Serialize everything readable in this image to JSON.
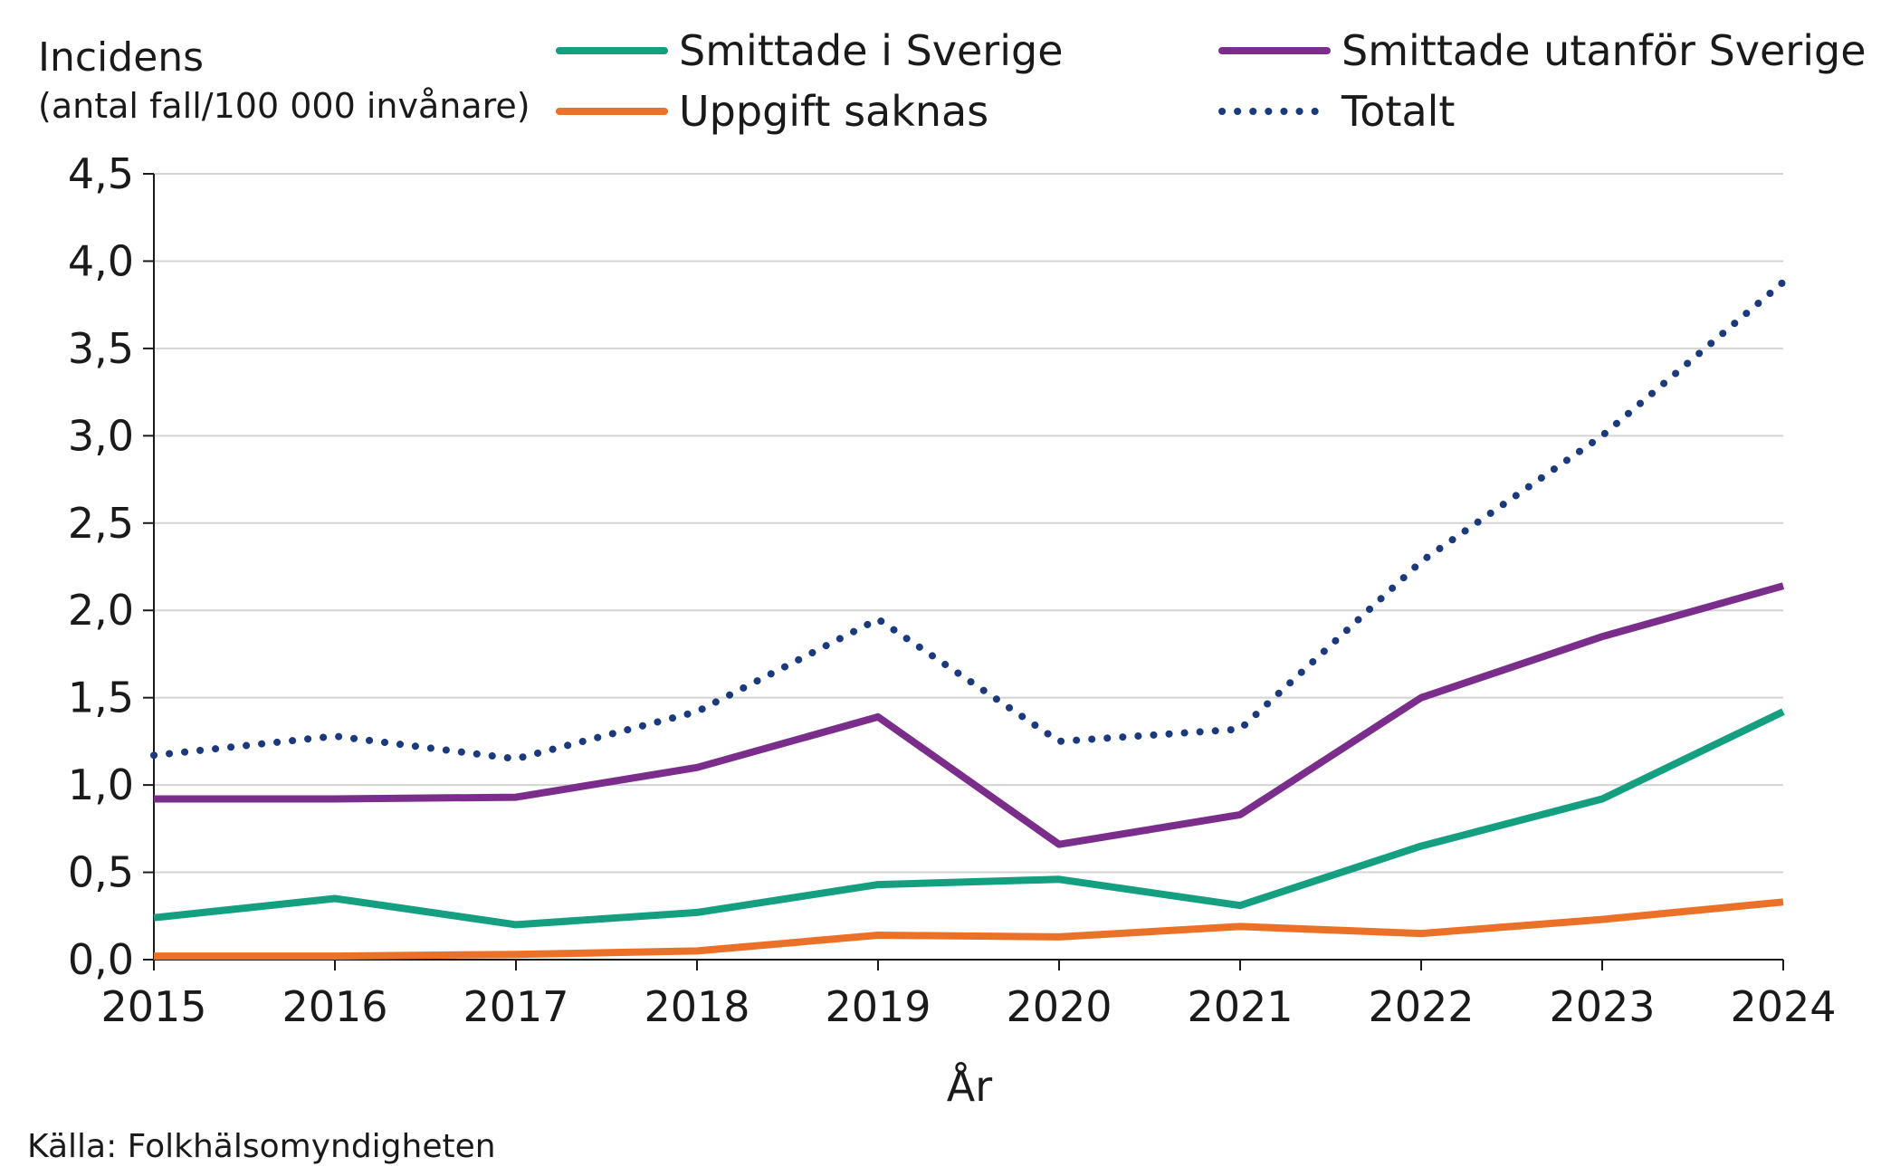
{
  "chart_data": {
    "type": "line",
    "title": "",
    "ylabel": "Incidens",
    "ylabel_sub": "(antal fall/100 000 invånare)",
    "xlabel": "År",
    "source": "Källa: Folkhälsomyndigheten",
    "ylim": [
      0,
      4.5
    ],
    "y_ticks": [
      "0,0",
      "0,5",
      "1,0",
      "1,5",
      "2,0",
      "2,5",
      "3,0",
      "3,5",
      "4,0",
      "4,5"
    ],
    "y_tick_values": [
      0,
      0.5,
      1.0,
      1.5,
      2.0,
      2.5,
      3.0,
      3.5,
      4.0,
      4.5
    ],
    "grid": true,
    "legend_position": "top",
    "categories": [
      "2015",
      "2016",
      "2017",
      "2018",
      "2019",
      "2020",
      "2021",
      "2022",
      "2023",
      "2024"
    ],
    "series": [
      {
        "name": "Smittade i Sverige",
        "color": "#149f81",
        "style": "solid",
        "values": [
          0.24,
          0.35,
          0.2,
          0.27,
          0.43,
          0.46,
          0.31,
          0.65,
          0.92,
          1.42
        ]
      },
      {
        "name": "Smittade utanför Sverige",
        "color": "#7b2d8c",
        "style": "solid",
        "values": [
          0.92,
          0.92,
          0.93,
          1.1,
          1.39,
          0.66,
          0.83,
          1.5,
          1.85,
          2.14
        ]
      },
      {
        "name": "Uppgift saknas",
        "color": "#ec7128",
        "style": "solid",
        "values": [
          0.02,
          0.02,
          0.03,
          0.05,
          0.14,
          0.13,
          0.19,
          0.15,
          0.23,
          0.33
        ]
      },
      {
        "name": "Totalt",
        "color": "#1b3a7d",
        "style": "dotted",
        "values": [
          1.17,
          1.28,
          1.15,
          1.42,
          1.95,
          1.25,
          1.32,
          2.28,
          3.0,
          3.88
        ]
      }
    ]
  }
}
